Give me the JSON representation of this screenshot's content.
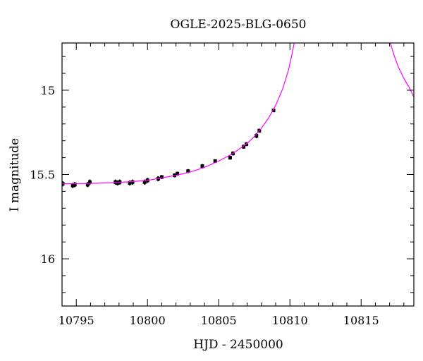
{
  "chart_data": {
    "type": "scatter",
    "title": "OGLE-2025-BLG-0650",
    "xlabel": "HJD - 2450000",
    "ylabel": "I magnitude",
    "xlim": [
      10794,
      10818.7
    ],
    "ylim": [
      16.28,
      14.72
    ],
    "y_inverted": true,
    "x_major_ticks": [
      10795,
      10800,
      10805,
      10810,
      10815
    ],
    "x_tick_labels": [
      "10795",
      "10800",
      "10805",
      "10810",
      "10815"
    ],
    "y_major_ticks": [
      15,
      15.5,
      16
    ],
    "y_tick_labels": [
      "15",
      "15.5",
      "16"
    ],
    "grid": false,
    "series": [
      {
        "kind": "observations",
        "color": "#000000",
        "points": [
          {
            "x": 10794.05,
            "y": 15.555,
            "err": 0.015
          },
          {
            "x": 10794.75,
            "y": 15.565,
            "err": 0.015
          },
          {
            "x": 10794.9,
            "y": 15.56,
            "err": 0.015
          },
          {
            "x": 10795.8,
            "y": 15.56,
            "err": 0.015
          },
          {
            "x": 10795.95,
            "y": 15.545,
            "err": 0.015
          },
          {
            "x": 10797.75,
            "y": 15.545,
            "err": 0.015
          },
          {
            "x": 10797.9,
            "y": 15.55,
            "err": 0.015
          },
          {
            "x": 10798.05,
            "y": 15.545,
            "err": 0.015
          },
          {
            "x": 10798.75,
            "y": 15.55,
            "err": 0.015
          },
          {
            "x": 10798.95,
            "y": 15.545,
            "err": 0.015
          },
          {
            "x": 10799.8,
            "y": 15.545,
            "err": 0.015
          },
          {
            "x": 10800.0,
            "y": 15.535,
            "err": 0.015
          },
          {
            "x": 10800.75,
            "y": 15.525,
            "err": 0.015
          },
          {
            "x": 10801.0,
            "y": 15.515,
            "err": 0.012
          },
          {
            "x": 10801.9,
            "y": 15.505,
            "err": 0.012
          },
          {
            "x": 10802.1,
            "y": 15.495,
            "err": 0.012
          },
          {
            "x": 10802.85,
            "y": 15.48,
            "err": 0.012
          },
          {
            "x": 10803.85,
            "y": 15.45,
            "err": 0.012
          },
          {
            "x": 10804.75,
            "y": 15.42,
            "err": 0.01
          },
          {
            "x": 10805.8,
            "y": 15.4,
            "err": 0.012
          },
          {
            "x": 10806.0,
            "y": 15.375,
            "err": 0.012
          },
          {
            "x": 10806.75,
            "y": 15.335,
            "err": 0.012
          },
          {
            "x": 10806.95,
            "y": 15.32,
            "err": 0.012
          },
          {
            "x": 10807.65,
            "y": 15.27,
            "err": 0.015
          },
          {
            "x": 10807.85,
            "y": 15.24,
            "err": 0.012
          },
          {
            "x": 10808.85,
            "y": 15.12,
            "err": 0.01
          }
        ]
      },
      {
        "kind": "model",
        "color": "#ff00ff",
        "points": [
          {
            "x": 10794.0,
            "y": 15.555
          },
          {
            "x": 10796.0,
            "y": 15.553
          },
          {
            "x": 10798.0,
            "y": 15.547
          },
          {
            "x": 10800.0,
            "y": 15.535
          },
          {
            "x": 10802.0,
            "y": 15.505
          },
          {
            "x": 10803.0,
            "y": 15.485
          },
          {
            "x": 10804.0,
            "y": 15.458
          },
          {
            "x": 10805.0,
            "y": 15.42
          },
          {
            "x": 10806.0,
            "y": 15.375
          },
          {
            "x": 10807.0,
            "y": 15.315
          },
          {
            "x": 10807.5,
            "y": 15.275
          },
          {
            "x": 10808.0,
            "y": 15.225
          },
          {
            "x": 10808.5,
            "y": 15.165
          },
          {
            "x": 10809.0,
            "y": 15.09
          },
          {
            "x": 10809.5,
            "y": 14.99
          },
          {
            "x": 10809.9,
            "y": 14.88
          },
          {
            "x": 10810.15,
            "y": 14.785
          },
          {
            "x": 10810.3,
            "y": 14.72
          }
        ]
      },
      {
        "kind": "model",
        "color": "#ff00ff",
        "points": [
          {
            "x": 10817.05,
            "y": 14.72
          },
          {
            "x": 10817.3,
            "y": 14.79
          },
          {
            "x": 10817.6,
            "y": 14.86
          },
          {
            "x": 10818.0,
            "y": 14.93
          },
          {
            "x": 10818.35,
            "y": 14.98
          },
          {
            "x": 10818.7,
            "y": 15.04
          }
        ]
      }
    ]
  }
}
